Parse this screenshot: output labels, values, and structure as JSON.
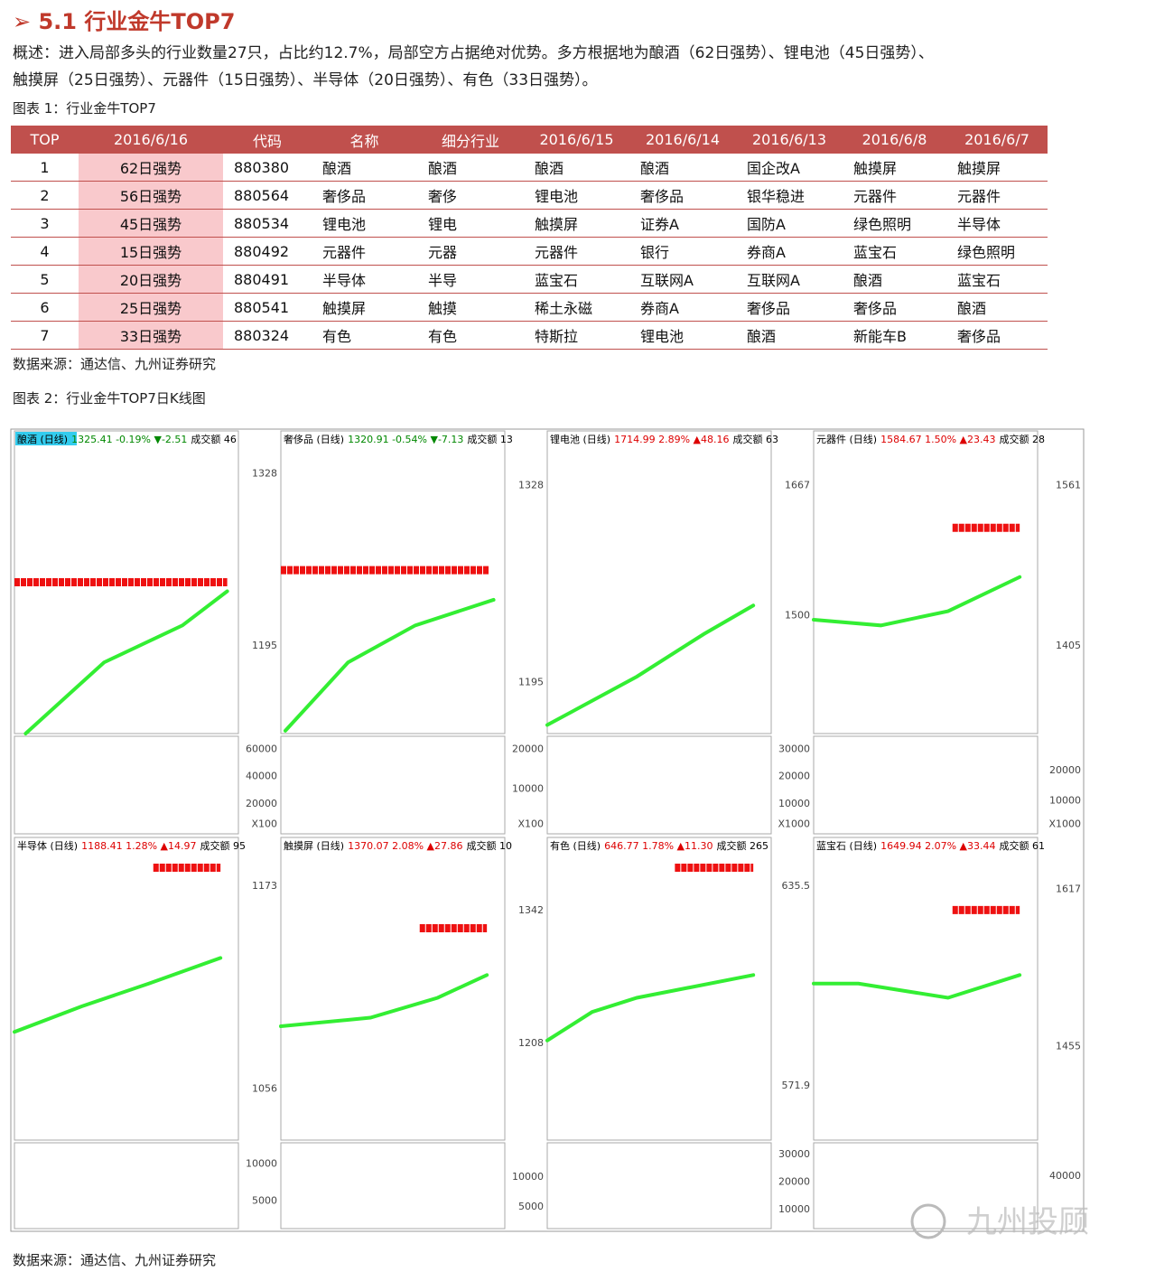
{
  "section_title": "5.1 行业金牛TOP7",
  "summary": [
    "概述：进入局部多头的行业数量27只，占比约12.7%，局部空方占据绝对优势。多方根据地为酿酒（62日强势）、锂电池（45日强势）、",
    "触摸屏（25日强势）、元器件（15日强势）、半导体（20日强势）、有色（33日强势）。"
  ],
  "table_caption": "图表 1：行业金牛TOP7",
  "table": {
    "header": [
      "TOP",
      "2016/6/16",
      "代码",
      "名称",
      "细分行业",
      "2016/6/15",
      "2016/6/14",
      "2016/6/13",
      "2016/6/8",
      "2016/6/7"
    ],
    "rows": [
      [
        "1",
        "62日强势",
        "880380",
        "酿酒",
        "酿酒",
        "酿酒",
        "酿酒",
        "国企改A",
        "触摸屏",
        "触摸屏"
      ],
      [
        "2",
        "56日强势",
        "880564",
        "奢侈品",
        "奢侈",
        "锂电池",
        "奢侈品",
        "银华稳进",
        "元器件",
        "元器件"
      ],
      [
        "3",
        "45日强势",
        "880534",
        "锂电池",
        "锂电",
        "触摸屏",
        "证券A",
        "国防A",
        "绿色照明",
        "半导体"
      ],
      [
        "4",
        "15日强势",
        "880492",
        "元器件",
        "元器",
        "元器件",
        "银行",
        "券商A",
        "蓝宝石",
        "绿色照明"
      ],
      [
        "5",
        "20日强势",
        "880491",
        "半导体",
        "半导",
        "蓝宝石",
        "互联网A",
        "互联网A",
        "酿酒",
        "蓝宝石"
      ],
      [
        "6",
        "25日强势",
        "880541",
        "触摸屏",
        "触摸",
        "稀土永磁",
        "券商A",
        "奢侈品",
        "奢侈品",
        "酿酒"
      ],
      [
        "7",
        "33日强势",
        "880324",
        "有色",
        "有色",
        "特斯拉",
        "锂电池",
        "酿酒",
        "新能车B",
        "奢侈品"
      ]
    ]
  },
  "source_1": "数据来源：通达信、九州证券研究",
  "chart_caption": "图表 2：行业金牛TOP7日K线图",
  "panels": [
    {
      "name": "酿酒 (日线)",
      "quote": "1325.41 -0.19% ▼-2.51",
      "volume": "成交额 46",
      "quote_color": "#008800"
    },
    {
      "name": "奢侈品 (日线)",
      "quote": "1320.91 -0.54% ▼-7.13",
      "volume": "成交额 13",
      "quote_color": "#008800"
    },
    {
      "name": "锂电池 (日线)",
      "quote": "1714.99 2.89% ▲48.16",
      "volume": "成交额 63",
      "quote_color": "#dd0000"
    },
    {
      "name": "元器件 (日线)",
      "quote": "1584.67 1.50% ▲23.43",
      "volume": "成交额 28",
      "quote_color": "#dd0000"
    },
    {
      "name": "半导体 (日线)",
      "quote": "1188.41 1.28% ▲14.97",
      "volume": "成交额 95",
      "quote_color": "#dd0000"
    },
    {
      "name": "触摸屏 (日线)",
      "quote": "1370.07 2.08% ▲27.86",
      "volume": "成交额 10",
      "quote_color": "#dd0000"
    },
    {
      "name": "有色 (日线)",
      "quote": "646.77 1.78% ▲11.30",
      "volume": "成交额 265",
      "quote_color": "#dd0000"
    },
    {
      "name": "蓝宝石 (日线)",
      "quote": "1649.94 2.07% ▲33.44",
      "volume": "成交额 61",
      "quote_color": "#dd0000"
    }
  ],
  "axis_columns": [
    [
      "1328",
      "1195",
      "60000",
      "40000",
      "20000",
      "X100"
    ],
    [
      "1328",
      "1195",
      "20000",
      "10000",
      "X100"
    ],
    [
      "1667",
      "1500",
      "30000",
      "20000",
      "10000",
      "X1000"
    ],
    [
      "1561",
      "1405",
      "20000",
      "10000",
      "X1000"
    ],
    [
      "1173",
      "1056",
      "10000",
      "5000"
    ],
    [
      "1342",
      "1208",
      "10000",
      "5000"
    ],
    [
      "635.5",
      "571.9",
      "30000",
      "20000",
      "10000"
    ],
    [
      "1617",
      "1455",
      "40000"
    ]
  ],
  "watermark": "九州投顾",
  "source_2": "数据来源：通达信、九州证券研究"
}
